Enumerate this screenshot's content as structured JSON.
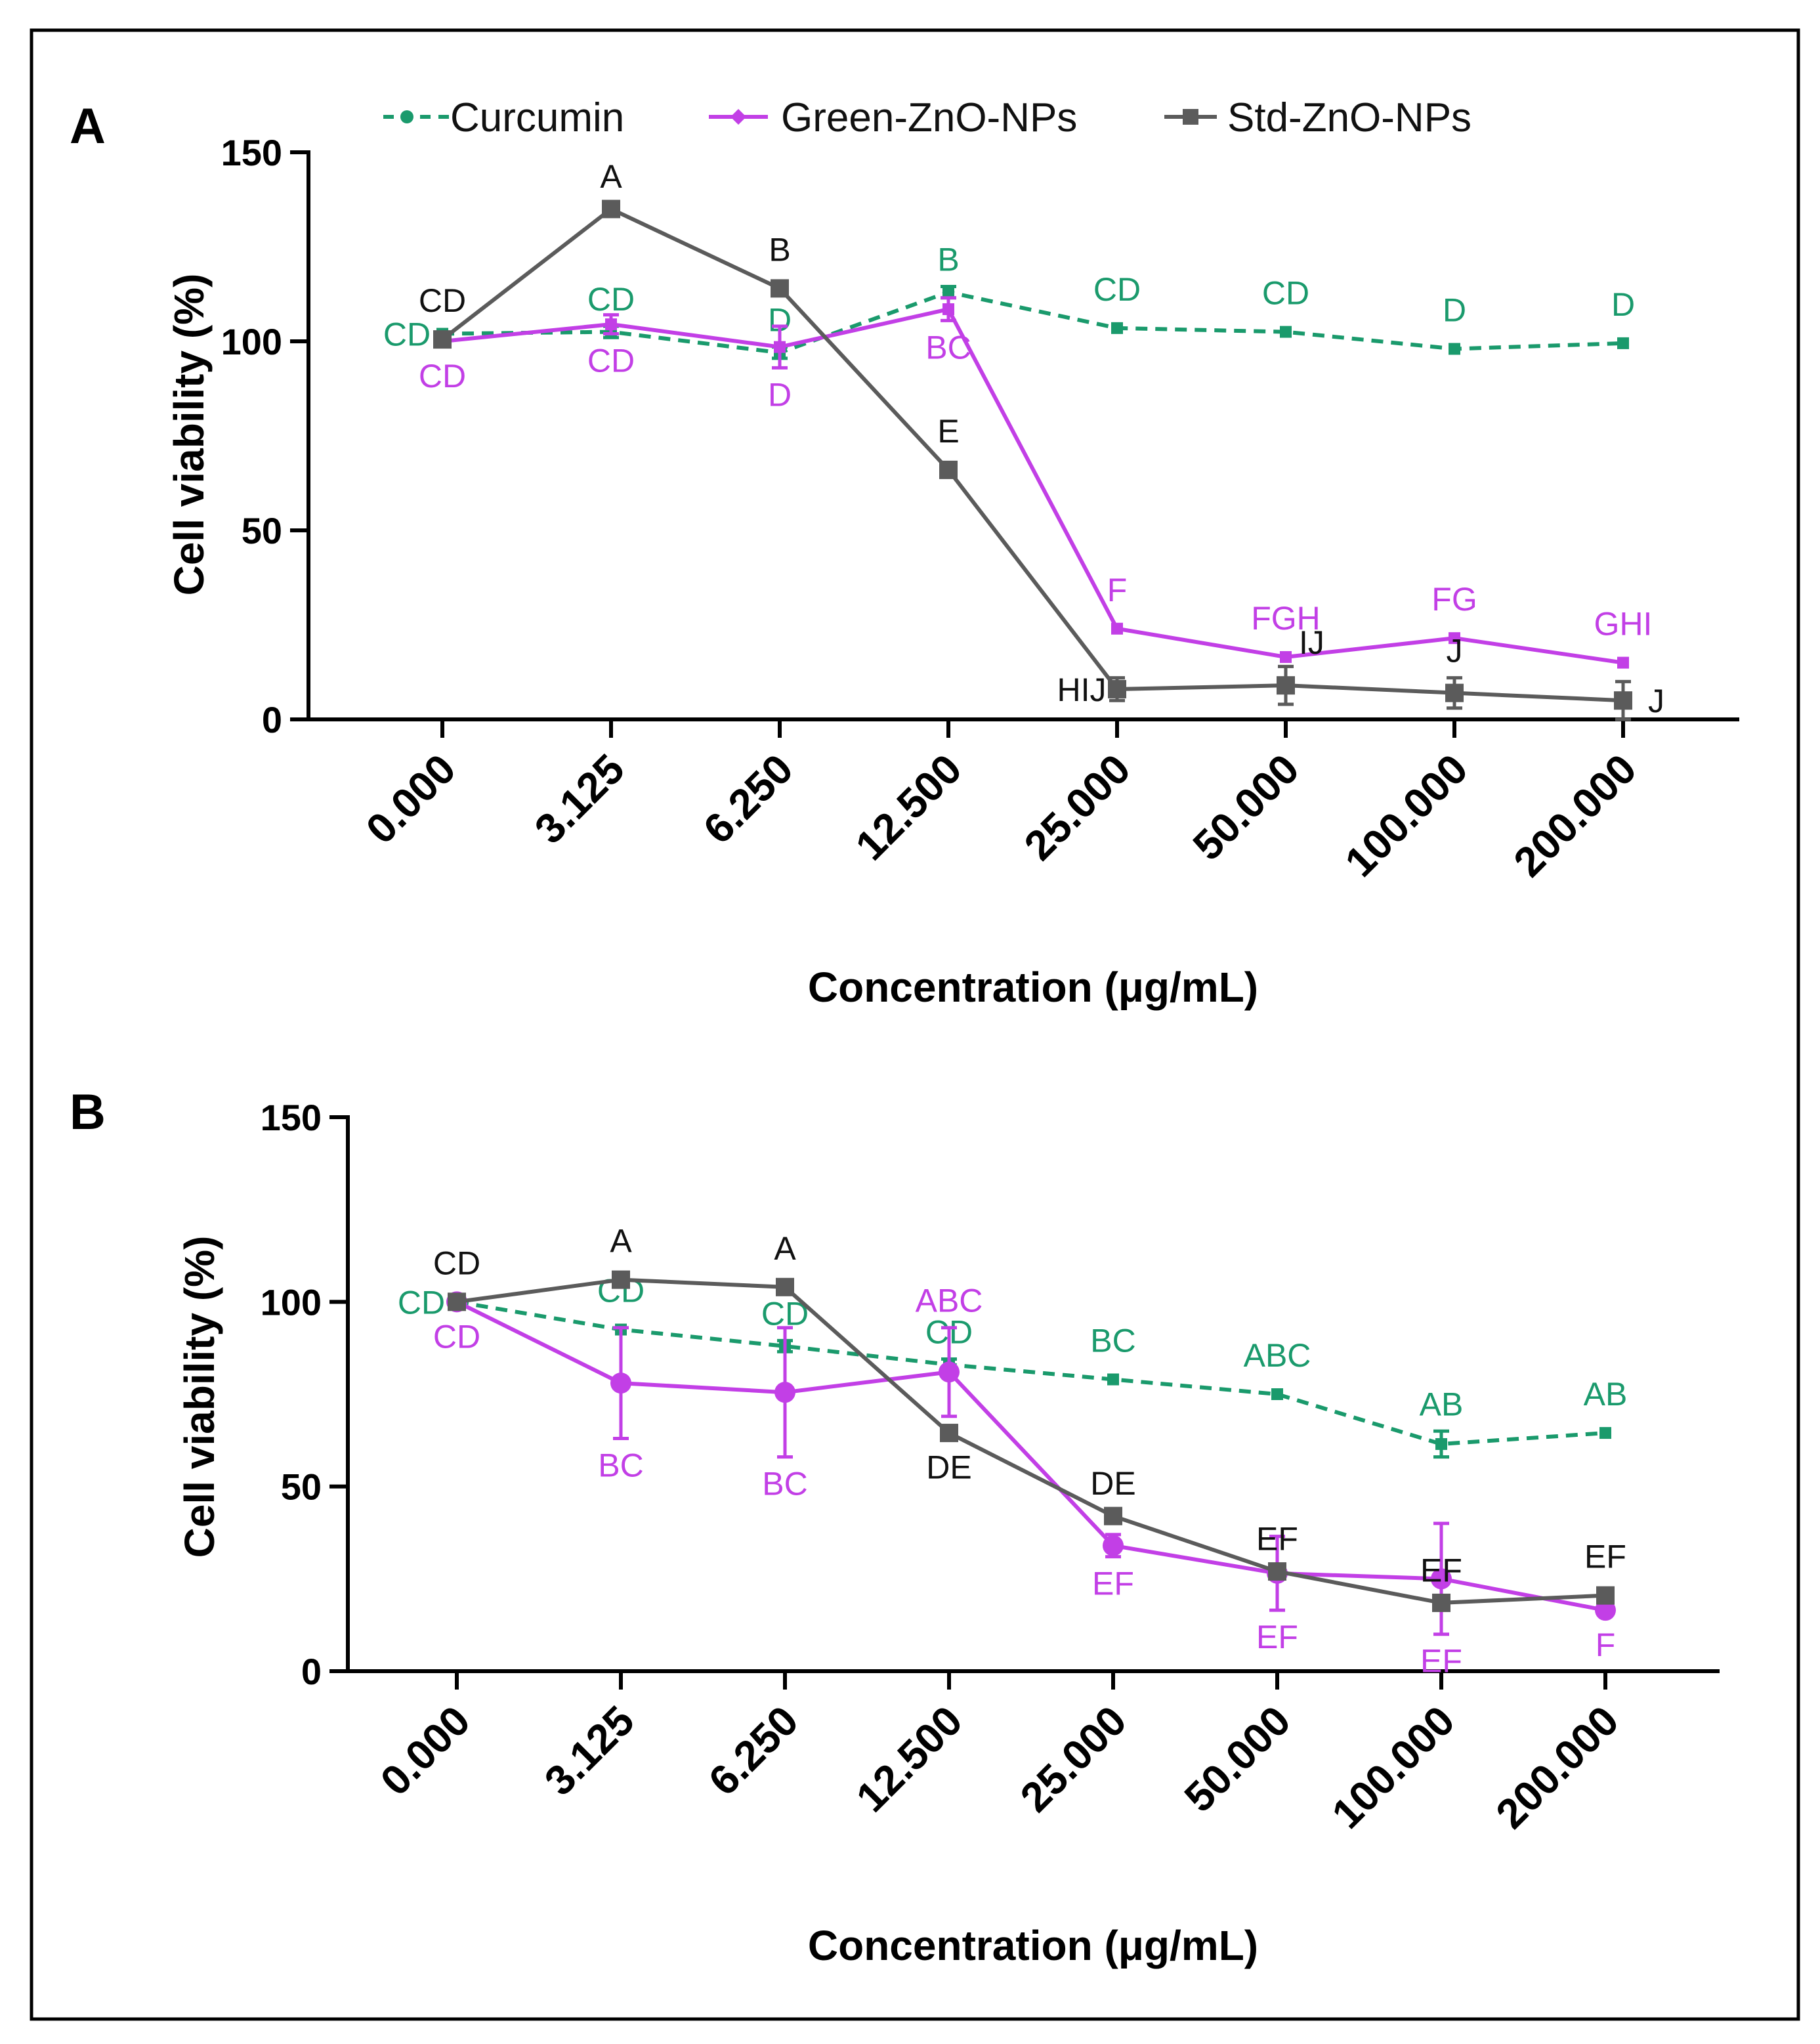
{
  "colors": {
    "curcumin": "#1a9a6c",
    "green_zno": "#c23fe6",
    "std_zno": "#5b5b5b",
    "axis": "#000000"
  },
  "legend": [
    {
      "key": "curcumin",
      "label": "Curcumin",
      "marker": "circle",
      "dash": true
    },
    {
      "key": "green_zno",
      "label": "Green-ZnO-NPs",
      "marker": "diamond",
      "dash": false
    },
    {
      "key": "std_zno",
      "label": "Std-ZnO-NPs",
      "marker": "square",
      "dash": false
    }
  ],
  "chart_data": [
    {
      "type": "line",
      "panel_label": "A",
      "title": "",
      "xlabel": "Concentration (μg/mL)",
      "ylabel": "Cell viability (%)",
      "ylim": [
        0,
        150
      ],
      "yticks": [
        0,
        50,
        100,
        150
      ],
      "categories": [
        "0.000",
        "3.125",
        "6.250",
        "12.500",
        "25.000",
        "50.000",
        "100.000",
        "200.000"
      ],
      "grid": false,
      "legend_position": "top",
      "series": [
        {
          "name": "Curcumin",
          "key": "curcumin",
          "values": [
            102,
            102.5,
            97,
            113,
            103.5,
            102.5,
            98,
            99.5
          ],
          "errors": [
            1,
            1.5,
            1.5,
            1.5,
            1,
            1,
            1,
            1
          ],
          "letters": [
            "CD",
            "CD",
            "D",
            "B",
            "CD",
            "CD",
            "D",
            "D"
          ]
        },
        {
          "name": "Green-ZnO-NPs",
          "key": "green_zno",
          "values": [
            100,
            104.5,
            98.5,
            108.5,
            24,
            16.5,
            21.5,
            15
          ],
          "errors": [
            1,
            2.5,
            5.5,
            3,
            1,
            1,
            1,
            1
          ],
          "letters": [
            "CD",
            "CD",
            "D",
            "BC",
            "F",
            "FGH",
            "FG",
            "GHI"
          ]
        },
        {
          "name": "Std-ZnO-NPs",
          "key": "std_zno",
          "values": [
            100.5,
            135,
            114,
            66,
            8,
            9,
            7,
            5
          ],
          "errors": [
            1,
            1.5,
            1,
            1,
            3,
            5,
            4,
            5
          ],
          "letters": [
            "CD",
            "A",
            "B",
            "E",
            "HIJ",
            "IJ",
            "J",
            "J"
          ]
        }
      ]
    },
    {
      "type": "line",
      "panel_label": "B",
      "title": "",
      "xlabel": "Concentration (μg/mL)",
      "ylabel": "Cell viability (%)",
      "ylim": [
        0,
        150
      ],
      "yticks": [
        0,
        50,
        100,
        150
      ],
      "categories": [
        "0.000",
        "3.125",
        "6.250",
        "12.500",
        "25.000",
        "50.000",
        "100.000",
        "200.000"
      ],
      "grid": false,
      "series": [
        {
          "name": "Curcumin",
          "key": "curcumin",
          "values": [
            100,
            92.5,
            88,
            83,
            79,
            75,
            61.5,
            64.5
          ],
          "errors": [
            1,
            1,
            1.5,
            1.5,
            1,
            1,
            3.5,
            1
          ],
          "letters": [
            "CD",
            "CD",
            "CD",
            "CD",
            "BC",
            "ABC",
            "AB",
            "AB"
          ]
        },
        {
          "name": "Green-ZnO-NPs",
          "key": "green_zno",
          "values": [
            100,
            78,
            75.5,
            81,
            34,
            26.5,
            25,
            16.5
          ],
          "errors": [
            1,
            15,
            17.5,
            12,
            3,
            10,
            15,
            1
          ],
          "letters": [
            "CD",
            "BC",
            "BC",
            "ABC",
            "EF",
            "EF",
            "EF",
            "F"
          ]
        },
        {
          "name": "Std-ZnO-NPs",
          "key": "std_zno",
          "values": [
            100,
            106,
            104,
            64.5,
            42,
            27,
            18.5,
            20.5
          ],
          "errors": [
            1,
            1,
            1,
            2,
            1.5,
            1.5,
            1.5,
            1
          ],
          "letters": [
            "CD",
            "A",
            "A",
            "DE",
            "DE",
            "EF",
            "EF",
            "EF"
          ]
        }
      ]
    }
  ]
}
